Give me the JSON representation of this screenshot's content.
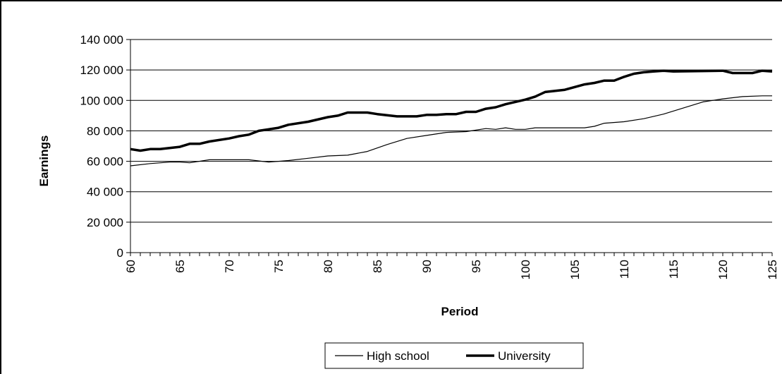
{
  "chart_data": {
    "type": "line",
    "title": "",
    "xlabel": "Period",
    "ylabel": "Earnings",
    "xlim": [
      60,
      125
    ],
    "ylim": [
      0,
      140000
    ],
    "x_ticks": [
      "60",
      "65",
      "70",
      "75",
      "80",
      "85",
      "90",
      "95",
      "100",
      "105",
      "110",
      "115",
      "120",
      "125"
    ],
    "y_ticks": [
      "0",
      "20 000",
      "40 000",
      "60 000",
      "80 000",
      "100 000",
      "120 000",
      "140 000"
    ],
    "grid": "horizontal",
    "legend_position": "bottom",
    "series": [
      {
        "name": "High school",
        "color": "#000000",
        "style": "thin",
        "points": [
          [
            60,
            57000
          ],
          [
            62,
            58500
          ],
          [
            64,
            59500
          ],
          [
            65,
            59500
          ],
          [
            66,
            59000
          ],
          [
            68,
            61000
          ],
          [
            72,
            61000
          ],
          [
            74,
            59500
          ],
          [
            76,
            60500
          ],
          [
            78,
            62000
          ],
          [
            80,
            63500
          ],
          [
            82,
            64000
          ],
          [
            84,
            66500
          ],
          [
            86,
            71000
          ],
          [
            88,
            75000
          ],
          [
            90,
            77000
          ],
          [
            92,
            79000
          ],
          [
            94,
            79500
          ],
          [
            96,
            81500
          ],
          [
            97,
            81000
          ],
          [
            98,
            82000
          ],
          [
            99,
            81000
          ],
          [
            100,
            81000
          ],
          [
            101,
            82000
          ],
          [
            106,
            82000
          ],
          [
            107,
            83000
          ],
          [
            108,
            85000
          ],
          [
            110,
            86000
          ],
          [
            112,
            88000
          ],
          [
            114,
            91000
          ],
          [
            116,
            95000
          ],
          [
            118,
            99000
          ],
          [
            120,
            101000
          ],
          [
            122,
            102500
          ],
          [
            124,
            103000
          ],
          [
            125,
            103000
          ]
        ]
      },
      {
        "name": "University",
        "color": "#000000",
        "style": "thick",
        "points": [
          [
            60,
            68000
          ],
          [
            61,
            67000
          ],
          [
            62,
            68000
          ],
          [
            63,
            68000
          ],
          [
            65,
            69500
          ],
          [
            66,
            71500
          ],
          [
            67,
            71500
          ],
          [
            68,
            73000
          ],
          [
            70,
            75000
          ],
          [
            71,
            76500
          ],
          [
            72,
            77500
          ],
          [
            73,
            80000
          ],
          [
            75,
            82000
          ],
          [
            76,
            84000
          ],
          [
            78,
            86000
          ],
          [
            80,
            89000
          ],
          [
            81,
            90000
          ],
          [
            82,
            92000
          ],
          [
            84,
            92000
          ],
          [
            85,
            91000
          ],
          [
            87,
            89500
          ],
          [
            89,
            89500
          ],
          [
            90,
            90500
          ],
          [
            91,
            90500
          ],
          [
            92,
            91000
          ],
          [
            93,
            91000
          ],
          [
            94,
            92500
          ],
          [
            95,
            92500
          ],
          [
            96,
            94500
          ],
          [
            97,
            95500
          ],
          [
            98,
            97500
          ],
          [
            100,
            100500
          ],
          [
            101,
            102500
          ],
          [
            102,
            105500
          ],
          [
            104,
            107000
          ],
          [
            106,
            110500
          ],
          [
            107,
            111500
          ],
          [
            108,
            113000
          ],
          [
            109,
            113000
          ],
          [
            110,
            115500
          ],
          [
            111,
            117500
          ],
          [
            112,
            118500
          ],
          [
            113,
            119000
          ],
          [
            114,
            119500
          ],
          [
            115,
            119000
          ],
          [
            120,
            119500
          ],
          [
            121,
            118000
          ],
          [
            123,
            118000
          ],
          [
            124,
            119500
          ],
          [
            125,
            119000
          ]
        ]
      }
    ]
  }
}
